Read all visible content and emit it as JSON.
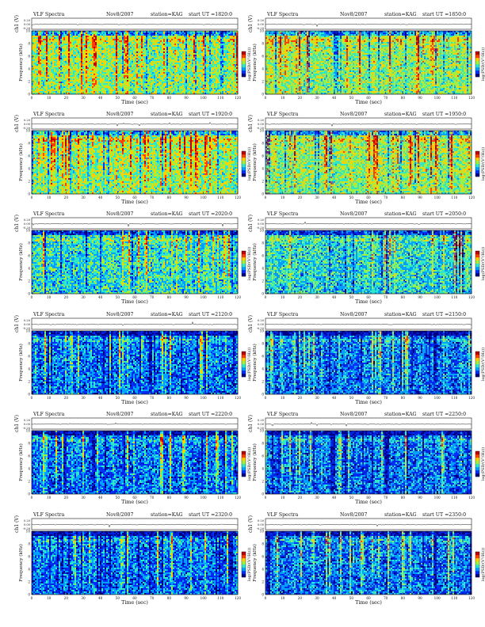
{
  "panel_common": {
    "title": "VLF Spectra",
    "date": "Nov8/2007",
    "station": "station=KAG",
    "start_prefix": "start  UT  =",
    "ch1_label": "ch1 (V)",
    "ch1_ticks": [
      "0.20",
      "0.00",
      "-0.20"
    ],
    "freq_label": "Frequency  (kHz)",
    "time_label": "Time  (sec)",
    "colorbar_label": "log(PSD/(V²/Hz))",
    "y_ticks": [
      "0",
      "2",
      "4",
      "6",
      "8",
      "10"
    ],
    "x_ticks": [
      "0",
      "10",
      "20",
      "30",
      "40",
      "50",
      "60",
      "70",
      "80",
      "90",
      "100",
      "110",
      "120"
    ]
  },
  "chart_data": [
    {
      "type": "heatmap",
      "start_ut": "1820:0",
      "xlim": [
        0,
        120
      ],
      "ylim": [
        0,
        10
      ],
      "activity": "high"
    },
    {
      "type": "heatmap",
      "start_ut": "1850:0",
      "xlim": [
        0,
        120
      ],
      "ylim": [
        0,
        10
      ],
      "activity": "high"
    },
    {
      "type": "heatmap",
      "start_ut": "1920:0",
      "xlim": [
        0,
        120
      ],
      "ylim": [
        0,
        10
      ],
      "activity": "high"
    },
    {
      "type": "heatmap",
      "start_ut": "1950:0",
      "xlim": [
        0,
        120
      ],
      "ylim": [
        0,
        10
      ],
      "activity": "high"
    },
    {
      "type": "heatmap",
      "start_ut": "2020:0",
      "xlim": [
        0,
        120
      ],
      "ylim": [
        0,
        10
      ],
      "activity": "medium"
    },
    {
      "type": "heatmap",
      "start_ut": "2050:0",
      "xlim": [
        0,
        120
      ],
      "ylim": [
        0,
        10
      ],
      "activity": "medium"
    },
    {
      "type": "heatmap",
      "start_ut": "2120:0",
      "xlim": [
        0,
        120
      ],
      "ylim": [
        0,
        10
      ],
      "activity": "low"
    },
    {
      "type": "heatmap",
      "start_ut": "2150:0",
      "xlim": [
        0,
        120
      ],
      "ylim": [
        0,
        10
      ],
      "activity": "low"
    },
    {
      "type": "heatmap",
      "start_ut": "2220:0",
      "xlim": [
        0,
        120
      ],
      "ylim": [
        0,
        10
      ],
      "activity": "low"
    },
    {
      "type": "heatmap",
      "start_ut": "2250:0",
      "xlim": [
        0,
        120
      ],
      "ylim": [
        0,
        10
      ],
      "activity": "low"
    },
    {
      "type": "heatmap",
      "start_ut": "2320:0",
      "xlim": [
        0,
        120
      ],
      "ylim": [
        0,
        10
      ],
      "activity": "low"
    },
    {
      "type": "heatmap",
      "start_ut": "2350:0",
      "xlim": [
        0,
        120
      ],
      "ylim": [
        0,
        10
      ],
      "activity": "low"
    }
  ],
  "colors": {
    "colormap": [
      "#000080",
      "#0030ff",
      "#00a0ff",
      "#30e8c8",
      "#a0f040",
      "#ffd000",
      "#ff4000",
      "#c00000"
    ],
    "frame": "#111111"
  }
}
